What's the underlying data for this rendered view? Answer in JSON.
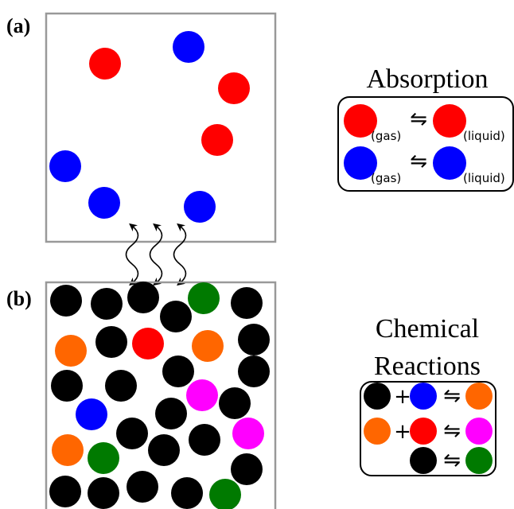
{
  "colors": {
    "red": "#ff0000",
    "blue": "#0000ff",
    "black": "#000000",
    "orange": "#ff6600",
    "green": "#007a00",
    "magenta": "#ff00ff",
    "box_border": "#999999"
  },
  "panels": {
    "a_label": "(a)",
    "b_label": "(b)"
  },
  "absorption": {
    "title": "Absorption",
    "gas_label": "(gas)",
    "liquid_label": "(liquid)",
    "equilibrium_symbol": "⇋"
  },
  "reactions": {
    "title_line1": "Chemical",
    "title_line2": "Reactions",
    "plus_symbol": "+",
    "equilibrium_symbol": "⇋"
  }
}
